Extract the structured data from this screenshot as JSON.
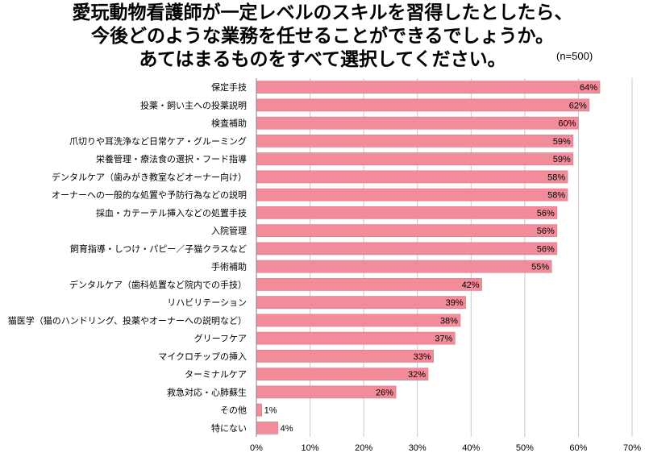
{
  "title_lines": [
    "愛玩動物看護師が一定レベルのスキルを習得したとしたら、",
    "今後どのような業務を任せることができるでしょうか。",
    "あてはまるものをすべて選択してください。"
  ],
  "sample_note": "(n=500)",
  "colors": {
    "bar": "#f28b9a",
    "bar_stroke": "#e07787",
    "grid": "#c8c8c8",
    "axis": "#808080"
  },
  "chart_data": {
    "type": "bar",
    "orientation": "horizontal",
    "categories": [
      "保定手技",
      "投薬・飼い主への投薬説明",
      "検査補助",
      "爪切りや耳洗浄など日常ケア・グルーミング",
      "栄養管理・療法食の選択・フード指導",
      "デンタルケア（歯みがき教室などオーナー向け）",
      "オーナーへの一般的な処置や予防行為などの説明",
      "採血・カテーテル挿入などの処置手技",
      "入院管理",
      "飼育指導・しつけ・パピー／子猫クラスなど",
      "手術補助",
      "デンタルケア（歯科処置など院内での手技）",
      "リハビリテーション",
      "猫医学（猫のハンドリング、投薬やオーナーへの説明など）",
      "グリーフケア",
      "マイクロチップの挿入",
      "ターミナルケア",
      "救急対応・心肺蘇生",
      "その他",
      "特にない"
    ],
    "values": [
      64,
      62,
      60,
      59,
      59,
      58,
      58,
      56,
      56,
      56,
      55,
      42,
      39,
      38,
      37,
      33,
      32,
      26,
      1,
      4
    ],
    "value_labels": [
      "64%",
      "62%",
      "60%",
      "59%",
      "59%",
      "58%",
      "58%",
      "56%",
      "56%",
      "56%",
      "55%",
      "42%",
      "39%",
      "38%",
      "37%",
      "33%",
      "32%",
      "26%",
      "1%",
      "4%"
    ],
    "xlim": [
      0,
      70
    ],
    "x_ticks": [
      0,
      10,
      20,
      30,
      40,
      50,
      60,
      70
    ],
    "x_tick_labels": [
      "0%",
      "10%",
      "20%",
      "30%",
      "40%",
      "50%",
      "60%",
      "70%"
    ],
    "grid": true
  }
}
